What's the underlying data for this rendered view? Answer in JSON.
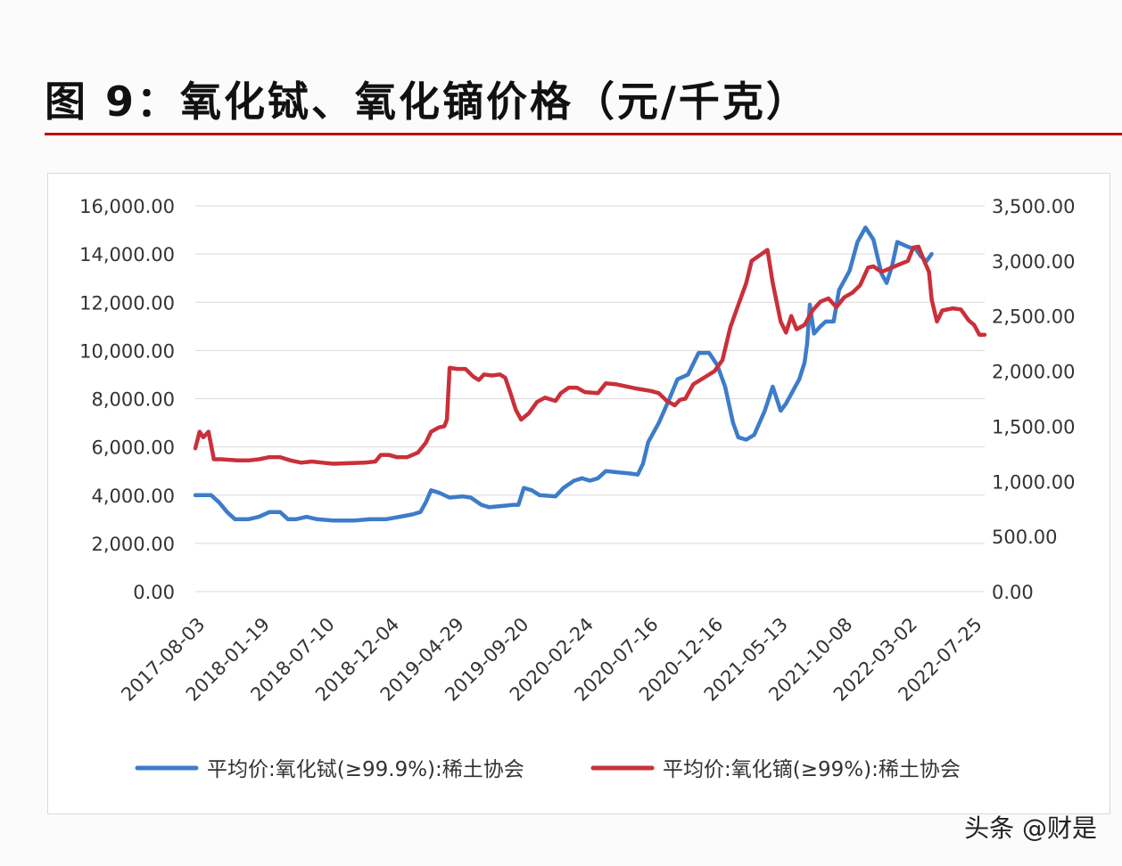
{
  "title": "图 9：氧化铽、氧化镝价格（元/千克）",
  "watermark": "头条 @财是",
  "chart_data": {
    "type": "line",
    "title": "",
    "categories": [
      "2017-08-03",
      "2018-01-19",
      "2018-07-10",
      "2018-12-04",
      "2019-04-29",
      "2019-09-20",
      "2020-02-24",
      "2020-07-16",
      "2020-12-16",
      "2021-05-13",
      "2021-10-08",
      "2022-03-02",
      "2022-07-25"
    ],
    "y_left": {
      "ylim": [
        0,
        16000
      ],
      "ticks": [
        "0.00",
        "2,000.00",
        "4,000.00",
        "6,000.00",
        "8,000.00",
        "10,000.00",
        "12,000.00",
        "14,000.00",
        "16,000.00"
      ]
    },
    "y_right": {
      "ylim": [
        0,
        3500
      ],
      "ticks": [
        "0.00",
        "500.00",
        "1,000.00",
        "1,500.00",
        "2,000.00",
        "2,500.00",
        "3,000.00",
        "3,500.00"
      ]
    },
    "grid": true,
    "legend_position": "bottom",
    "series": [
      {
        "name": "平均价:氧化铽(≥99.9%):稀土协会",
        "axis": "left",
        "color": "#3d7cc9",
        "points": [
          [
            0,
            4000
          ],
          [
            0.3,
            4000
          ],
          [
            0.45,
            3700
          ],
          [
            0.6,
            3300
          ],
          [
            0.75,
            3000
          ],
          [
            1.0,
            3000
          ],
          [
            1.2,
            3100
          ],
          [
            1.4,
            3300
          ],
          [
            1.6,
            3300
          ],
          [
            1.75,
            3000
          ],
          [
            1.9,
            3000
          ],
          [
            2.1,
            3100
          ],
          [
            2.3,
            3000
          ],
          [
            2.6,
            2950
          ],
          [
            3.0,
            2950
          ],
          [
            3.3,
            3000
          ],
          [
            3.6,
            3000
          ],
          [
            3.85,
            3100
          ],
          [
            4.1,
            3200
          ],
          [
            4.25,
            3300
          ],
          [
            4.35,
            3700
          ],
          [
            4.45,
            4200
          ],
          [
            4.6,
            4100
          ],
          [
            4.8,
            3900
          ],
          [
            5.05,
            3950
          ],
          [
            5.2,
            3900
          ],
          [
            5.4,
            3600
          ],
          [
            5.55,
            3500
          ],
          [
            5.8,
            3550
          ],
          [
            6.0,
            3600
          ],
          [
            6.1,
            3600
          ],
          [
            6.2,
            4300
          ],
          [
            6.35,
            4200
          ],
          [
            6.5,
            4000
          ],
          [
            6.8,
            3950
          ],
          [
            6.95,
            4300
          ],
          [
            7.15,
            4600
          ],
          [
            7.3,
            4700
          ],
          [
            7.45,
            4600
          ],
          [
            7.6,
            4700
          ],
          [
            7.75,
            5000
          ],
          [
            7.95,
            4950
          ],
          [
            8.2,
            4900
          ],
          [
            8.35,
            4850
          ],
          [
            8.45,
            5300
          ],
          [
            8.55,
            6200
          ],
          [
            8.75,
            7000
          ],
          [
            8.95,
            8000
          ],
          [
            9.1,
            8800
          ],
          [
            9.3,
            9000
          ],
          [
            9.5,
            9900
          ],
          [
            9.7,
            9900
          ],
          [
            9.85,
            9400
          ],
          [
            10.0,
            8500
          ],
          [
            10.15,
            7000
          ],
          [
            10.25,
            6400
          ],
          [
            10.4,
            6300
          ],
          [
            10.55,
            6500
          ],
          [
            10.75,
            7500
          ],
          [
            10.9,
            8500
          ],
          [
            11.05,
            7500
          ],
          [
            11.15,
            7800
          ],
          [
            11.25,
            8200
          ],
          [
            11.4,
            8800
          ],
          [
            11.5,
            9500
          ],
          [
            11.55,
            10300
          ],
          [
            11.6,
            11900
          ],
          [
            11.68,
            10700
          ],
          [
            11.8,
            11000
          ],
          [
            11.9,
            11200
          ],
          [
            12.05,
            11200
          ],
          [
            12.15,
            12500
          ],
          [
            12.35,
            13300
          ],
          [
            12.5,
            14500
          ],
          [
            12.65,
            15100
          ],
          [
            12.8,
            14600
          ],
          [
            12.95,
            13200
          ],
          [
            13.05,
            12800
          ],
          [
            13.15,
            13500
          ],
          [
            13.25,
            14500
          ],
          [
            13.35,
            14400
          ],
          [
            13.45,
            14300
          ],
          [
            13.6,
            14200
          ],
          [
            13.7,
            13900
          ],
          [
            13.8,
            13700
          ],
          [
            13.9,
            14000
          ]
        ]
      },
      {
        "name": "平均价:氧化镝(≥99%):稀土协会",
        "axis": "right",
        "color": "#c9303a",
        "points": [
          [
            0,
            1300
          ],
          [
            0.08,
            1450
          ],
          [
            0.15,
            1400
          ],
          [
            0.25,
            1450
          ],
          [
            0.35,
            1200
          ],
          [
            0.5,
            1200
          ],
          [
            0.8,
            1190
          ],
          [
            1.0,
            1190
          ],
          [
            1.2,
            1200
          ],
          [
            1.4,
            1220
          ],
          [
            1.6,
            1220
          ],
          [
            1.8,
            1190
          ],
          [
            2.0,
            1170
          ],
          [
            2.2,
            1180
          ],
          [
            2.4,
            1170
          ],
          [
            2.6,
            1160
          ],
          [
            2.9,
            1165
          ],
          [
            3.2,
            1170
          ],
          [
            3.4,
            1180
          ],
          [
            3.5,
            1240
          ],
          [
            3.65,
            1240
          ],
          [
            3.8,
            1220
          ],
          [
            4.0,
            1220
          ],
          [
            4.2,
            1260
          ],
          [
            4.35,
            1350
          ],
          [
            4.45,
            1450
          ],
          [
            4.6,
            1490
          ],
          [
            4.7,
            1500
          ],
          [
            4.75,
            1560
          ],
          [
            4.8,
            2030
          ],
          [
            4.95,
            2020
          ],
          [
            5.1,
            2020
          ],
          [
            5.25,
            1950
          ],
          [
            5.35,
            1920
          ],
          [
            5.45,
            1970
          ],
          [
            5.6,
            1960
          ],
          [
            5.75,
            1970
          ],
          [
            5.85,
            1940
          ],
          [
            5.95,
            1800
          ],
          [
            6.05,
            1650
          ],
          [
            6.15,
            1560
          ],
          [
            6.3,
            1620
          ],
          [
            6.45,
            1720
          ],
          [
            6.6,
            1760
          ],
          [
            6.8,
            1730
          ],
          [
            6.9,
            1800
          ],
          [
            7.05,
            1850
          ],
          [
            7.2,
            1850
          ],
          [
            7.35,
            1810
          ],
          [
            7.6,
            1800
          ],
          [
            7.75,
            1890
          ],
          [
            7.95,
            1880
          ],
          [
            8.15,
            1860
          ],
          [
            8.35,
            1840
          ],
          [
            8.6,
            1820
          ],
          [
            8.75,
            1800
          ],
          [
            8.9,
            1730
          ],
          [
            9.05,
            1690
          ],
          [
            9.15,
            1740
          ],
          [
            9.25,
            1750
          ],
          [
            9.4,
            1880
          ],
          [
            9.6,
            1940
          ],
          [
            9.8,
            2000
          ],
          [
            9.95,
            2100
          ],
          [
            10.1,
            2400
          ],
          [
            10.25,
            2600
          ],
          [
            10.4,
            2800
          ],
          [
            10.5,
            3000
          ],
          [
            10.65,
            3050
          ],
          [
            10.8,
            3100
          ],
          [
            10.9,
            2800
          ],
          [
            11.05,
            2450
          ],
          [
            11.15,
            2350
          ],
          [
            11.25,
            2500
          ],
          [
            11.35,
            2380
          ],
          [
            11.5,
            2420
          ],
          [
            11.65,
            2550
          ],
          [
            11.8,
            2630
          ],
          [
            11.95,
            2660
          ],
          [
            12.1,
            2580
          ],
          [
            12.25,
            2670
          ],
          [
            12.4,
            2710
          ],
          [
            12.55,
            2780
          ],
          [
            12.7,
            2940
          ],
          [
            12.8,
            2950
          ],
          [
            12.95,
            2900
          ],
          [
            13.05,
            2920
          ],
          [
            13.2,
            2950
          ],
          [
            13.35,
            2980
          ],
          [
            13.45,
            3000
          ],
          [
            13.55,
            3120
          ],
          [
            13.65,
            3130
          ],
          [
            13.75,
            3010
          ],
          [
            13.85,
            2900
          ],
          [
            13.9,
            2650
          ],
          [
            14.0,
            2450
          ],
          [
            14.1,
            2550
          ],
          [
            14.3,
            2570
          ],
          [
            14.45,
            2560
          ],
          [
            14.6,
            2460
          ],
          [
            14.7,
            2420
          ],
          [
            14.8,
            2330
          ],
          [
            14.9,
            2330
          ]
        ]
      }
    ]
  }
}
